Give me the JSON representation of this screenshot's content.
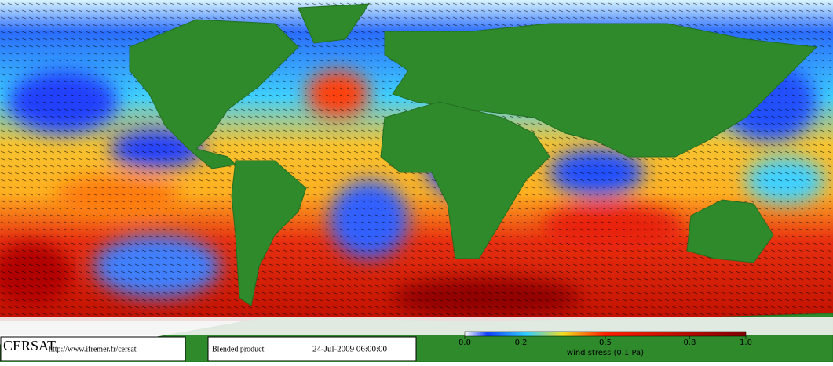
{
  "footer": {
    "logo": "CERSAT",
    "url": "http://www.ifremer.fr/cersat",
    "product": "Blended product",
    "date": "24-Jul-2009 06:00:00"
  },
  "colorbar": {
    "label": "wind stress (0.1 Pa)",
    "lim": [
      0,
      1
    ],
    "ticks": [
      {
        "value": 0,
        "label": "0.0"
      },
      0.2,
      0.5,
      0.8,
      {
        "value": 1,
        "label": "1.0"
      }
    ]
  }
}
